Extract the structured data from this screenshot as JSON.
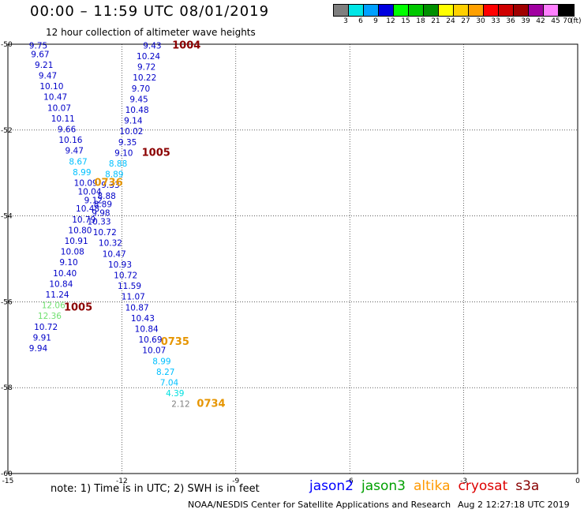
{
  "title": "00:00 – 11:59 UTC 08/01/2019",
  "subtitle": "12 hour collection of altimeter wave heights",
  "legend": {
    "ticks": [
      "3",
      "6",
      "9",
      "12",
      "15",
      "18",
      "21",
      "24",
      "27",
      "30",
      "33",
      "36",
      "39",
      "42",
      "45",
      "70"
    ],
    "unit": "(ft)",
    "colors": [
      "#7f7f7f",
      "#00e6e6",
      "#00a0ff",
      "#0000e0",
      "#00ff00",
      "#00c800",
      "#009000",
      "#ffff00",
      "#ffd000",
      "#ffa000",
      "#ff0000",
      "#d00000",
      "#a00000",
      "#a000a0",
      "#ff80ff",
      "#000000"
    ]
  },
  "axes": {
    "lon_labels": [
      "-15",
      "-12",
      "-9",
      "-6",
      "-3",
      "0"
    ],
    "lat_labels": [
      "-50",
      "-52",
      "-54",
      "-56",
      "-58",
      "-60"
    ]
  },
  "obs": [
    {
      "lon": -14.2,
      "lat": -50.1,
      "v": "9.75",
      "c": "#0000c8"
    },
    {
      "lon": -14.15,
      "lat": -50.3,
      "v": "9.67",
      "c": "#0000c8"
    },
    {
      "lon": -14.05,
      "lat": -50.55,
      "v": "9.21",
      "c": "#0000c8"
    },
    {
      "lon": -13.95,
      "lat": -50.8,
      "v": "9.47",
      "c": "#0000c8"
    },
    {
      "lon": -13.85,
      "lat": -51.05,
      "v": "10.10",
      "c": "#0000c8"
    },
    {
      "lon": -13.75,
      "lat": -51.3,
      "v": "10.47",
      "c": "#0000c8"
    },
    {
      "lon": -13.65,
      "lat": -51.55,
      "v": "10.07",
      "c": "#0000c8"
    },
    {
      "lon": -13.55,
      "lat": -51.8,
      "v": "10.11",
      "c": "#0000c8"
    },
    {
      "lon": -13.45,
      "lat": -52.05,
      "v": "9.66",
      "c": "#0000c8"
    },
    {
      "lon": -13.35,
      "lat": -52.3,
      "v": "10.16",
      "c": "#0000c8"
    },
    {
      "lon": -13.25,
      "lat": -52.55,
      "v": "9.47",
      "c": "#0000c8"
    },
    {
      "lon": -13.15,
      "lat": -52.8,
      "v": "8.67",
      "c": "#00c0ff"
    },
    {
      "lon": -13.05,
      "lat": -53.05,
      "v": "8.99",
      "c": "#00c0ff"
    },
    {
      "lon": -12.95,
      "lat": -53.3,
      "v": "10.09",
      "c": "#0000c8"
    },
    {
      "lon": -12.85,
      "lat": -53.5,
      "v": "10.04",
      "c": "#0000c8"
    },
    {
      "lon": -12.75,
      "lat": -53.7,
      "v": "9.12",
      "c": "#0000c8"
    },
    {
      "lon": -12.9,
      "lat": -53.9,
      "v": "10.48",
      "c": "#0000c8"
    },
    {
      "lon": -13.0,
      "lat": -54.15,
      "v": "10.79",
      "c": "#0000c8"
    },
    {
      "lon": -13.1,
      "lat": -54.4,
      "v": "10.80",
      "c": "#0000c8"
    },
    {
      "lon": -13.2,
      "lat": -54.65,
      "v": "10.91",
      "c": "#0000c8"
    },
    {
      "lon": -13.3,
      "lat": -54.9,
      "v": "10.08",
      "c": "#0000c8"
    },
    {
      "lon": -13.4,
      "lat": -55.15,
      "v": "9.10",
      "c": "#0000c8"
    },
    {
      "lon": -13.5,
      "lat": -55.4,
      "v": "10.40",
      "c": "#0000c8"
    },
    {
      "lon": -13.6,
      "lat": -55.65,
      "v": "10.84",
      "c": "#0000c8"
    },
    {
      "lon": -13.7,
      "lat": -55.9,
      "v": "11.24",
      "c": "#0000c8"
    },
    {
      "lon": -13.8,
      "lat": -56.15,
      "v": "12.06",
      "c": "#70e070"
    },
    {
      "lon": -13.9,
      "lat": -56.4,
      "v": "12.36",
      "c": "#70e070"
    },
    {
      "lon": -14.0,
      "lat": -56.65,
      "v": "10.72",
      "c": "#0000c8"
    },
    {
      "lon": -14.1,
      "lat": -56.9,
      "v": "9.91",
      "c": "#0000c8"
    },
    {
      "lon": -14.2,
      "lat": -57.15,
      "v": "9.94",
      "c": "#0000c8"
    },
    {
      "lon": -11.2,
      "lat": -50.1,
      "v": "9.43",
      "c": "#0000c8"
    },
    {
      "lon": -11.3,
      "lat": -50.35,
      "v": "10.24",
      "c": "#0000c8"
    },
    {
      "lon": -11.35,
      "lat": -50.6,
      "v": "9.72",
      "c": "#0000c8"
    },
    {
      "lon": -11.4,
      "lat": -50.85,
      "v": "10.22",
      "c": "#0000c8"
    },
    {
      "lon": -11.5,
      "lat": -51.1,
      "v": "9.70",
      "c": "#0000c8"
    },
    {
      "lon": -11.55,
      "lat": -51.35,
      "v": "9.45",
      "c": "#0000c8"
    },
    {
      "lon": -11.6,
      "lat": -51.6,
      "v": "10.48",
      "c": "#0000c8"
    },
    {
      "lon": -11.7,
      "lat": -51.85,
      "v": "9.14",
      "c": "#0000c8"
    },
    {
      "lon": -11.75,
      "lat": -52.1,
      "v": "10.02",
      "c": "#0000c8"
    },
    {
      "lon": -11.85,
      "lat": -52.35,
      "v": "9.35",
      "c": "#0000c8"
    },
    {
      "lon": -11.95,
      "lat": -52.6,
      "v": "9.10",
      "c": "#0000c8"
    },
    {
      "lon": -12.1,
      "lat": -52.85,
      "v": "8.88",
      "c": "#00c0ff"
    },
    {
      "lon": -12.2,
      "lat": -53.1,
      "v": "8.89",
      "c": "#00c0ff"
    },
    {
      "lon": -12.3,
      "lat": -53.35,
      "v": "9.33",
      "c": "#0000c8"
    },
    {
      "lon": -12.4,
      "lat": -53.6,
      "v": "8.88",
      "c": "#0000c8"
    },
    {
      "lon": -12.5,
      "lat": -53.8,
      "v": "8.89",
      "c": "#0000c8"
    },
    {
      "lon": -12.55,
      "lat": -54.0,
      "v": "9.98",
      "c": "#0000c8"
    },
    {
      "lon": -12.6,
      "lat": -54.2,
      "v": "10.33",
      "c": "#0000c8"
    },
    {
      "lon": -12.45,
      "lat": -54.45,
      "v": "10.72",
      "c": "#0000c8"
    },
    {
      "lon": -12.3,
      "lat": -54.7,
      "v": "10.32",
      "c": "#0000c8"
    },
    {
      "lon": -12.2,
      "lat": -54.95,
      "v": "10.47",
      "c": "#0000c8"
    },
    {
      "lon": -12.05,
      "lat": -55.2,
      "v": "10.93",
      "c": "#0000c8"
    },
    {
      "lon": -11.9,
      "lat": -55.45,
      "v": "10.72",
      "c": "#0000c8"
    },
    {
      "lon": -11.8,
      "lat": -55.7,
      "v": "11.59",
      "c": "#0000c8"
    },
    {
      "lon": -11.7,
      "lat": -55.95,
      "v": "11.07",
      "c": "#0000c8"
    },
    {
      "lon": -11.6,
      "lat": -56.2,
      "v": "10.87",
      "c": "#0000c8"
    },
    {
      "lon": -11.45,
      "lat": -56.45,
      "v": "10.43",
      "c": "#0000c8"
    },
    {
      "lon": -11.35,
      "lat": -56.7,
      "v": "10.84",
      "c": "#0000c8"
    },
    {
      "lon": -11.25,
      "lat": -56.95,
      "v": "10.69",
      "c": "#0000c8"
    },
    {
      "lon": -11.15,
      "lat": -57.2,
      "v": "10.07",
      "c": "#0000c8"
    },
    {
      "lon": -10.95,
      "lat": -57.45,
      "v": "8.99",
      "c": "#00c0ff"
    },
    {
      "lon": -10.85,
      "lat": -57.7,
      "v": "8.27",
      "c": "#00c0ff"
    },
    {
      "lon": -10.75,
      "lat": -57.95,
      "v": "7.04",
      "c": "#00c0ff"
    },
    {
      "lon": -10.6,
      "lat": -58.2,
      "v": "4.39",
      "c": "#00e0e0"
    },
    {
      "lon": -10.45,
      "lat": -58.45,
      "v": "2.12",
      "c": "#808080"
    }
  ],
  "times": [
    {
      "lon": -10.3,
      "lat": -50.1,
      "t": "1004",
      "c": "#8b0000"
    },
    {
      "lon": -11.1,
      "lat": -52.6,
      "t": "1005",
      "c": "#8b0000"
    },
    {
      "lon": -12.35,
      "lat": -53.3,
      "t": "0736",
      "c": "#e69500"
    },
    {
      "lon": -13.15,
      "lat": -56.2,
      "t": "1005",
      "c": "#8b0000"
    },
    {
      "lon": -10.6,
      "lat": -57.0,
      "t": "0735",
      "c": "#e69500"
    },
    {
      "lon": -9.65,
      "lat": -58.45,
      "t": "0734",
      "c": "#e69500"
    }
  ],
  "note": "note:  1) Time is in UTC;  2) SWH is in feet",
  "satellites": [
    {
      "name": "jason2",
      "color": "#0000ff"
    },
    {
      "name": "jason3",
      "color": "#00a000"
    },
    {
      "name": "altika",
      "color": "#ff9900"
    },
    {
      "name": "cryosat",
      "color": "#dd0000"
    },
    {
      "name": "s3a",
      "color": "#880000"
    }
  ],
  "credit": "NOAA/NESDIS Center for Satellite Applications and Research",
  "timestamp": "Aug  2 12:27:18 UTC 2019"
}
